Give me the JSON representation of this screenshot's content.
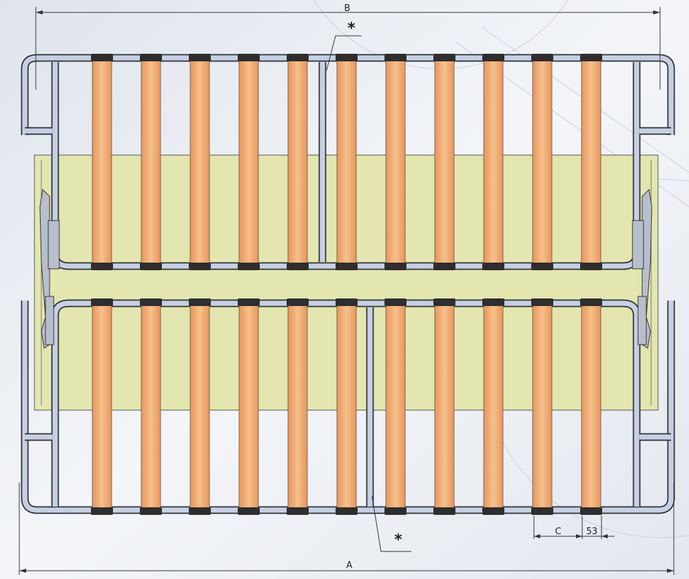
{
  "dimensions": {
    "frame_width": "B",
    "overall_width": "A",
    "slat_pitch": "C",
    "slat_width": "53"
  },
  "annotations": {
    "upper_divider": "*",
    "lower_divider": "*"
  }
}
